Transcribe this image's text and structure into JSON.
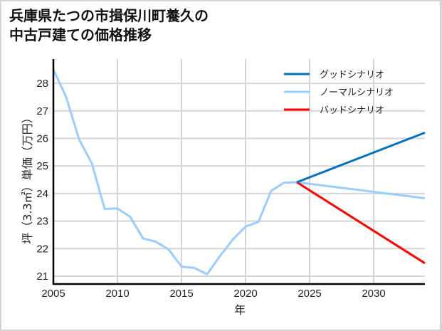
{
  "title": {
    "line1": "兵庫県たつの市揖保川町養久の",
    "line2": "中古戸建ての価格推移"
  },
  "colors": {
    "good": "#0070c0",
    "normal": "#99ccff",
    "bad": "#ff0000",
    "grid": "#d4d4d4",
    "axis": "#000000"
  },
  "chart_data": {
    "type": "line",
    "title": "兵庫県たつの市揖保川町養久の中古戸建ての価格推移",
    "xlabel": "年",
    "ylabel": "坪（3.3㎡）単価（万円）",
    "xlim": [
      2005,
      2034
    ],
    "ylim": [
      20.7,
      28.9
    ],
    "xticks": [
      2005,
      2010,
      2015,
      2020,
      2025,
      2030
    ],
    "yticks": [
      21,
      22,
      23,
      24,
      25,
      26,
      27,
      28
    ],
    "grid": true,
    "legend_position": "upper right",
    "historical": {
      "name": "ノーマルシナリオ",
      "x": [
        2005,
        2006,
        2007,
        2008,
        2009,
        2010,
        2011,
        2012,
        2013,
        2014,
        2015,
        2016,
        2017,
        2018,
        2019,
        2020,
        2021,
        2022,
        2023,
        2024
      ],
      "values": [
        28.5,
        27.5,
        25.97,
        25.1,
        23.44,
        23.46,
        23.15,
        22.37,
        22.25,
        21.97,
        21.35,
        21.3,
        21.07,
        21.73,
        22.33,
        22.8,
        22.97,
        24.1,
        24.39,
        24.41
      ]
    },
    "series": [
      {
        "name": "グッドシナリオ",
        "color": "#0070c0",
        "x": [
          2024,
          2034
        ],
        "values": [
          24.41,
          26.21
        ]
      },
      {
        "name": "ノーマルシナリオ",
        "color": "#99ccff",
        "x": [
          2024,
          2034
        ],
        "values": [
          24.41,
          23.83
        ]
      },
      {
        "name": "バッドシナリオ",
        "color": "#ff0000",
        "x": [
          2024,
          2034
        ],
        "values": [
          24.41,
          21.47
        ]
      }
    ]
  },
  "legend": [
    {
      "label": "グッドシナリオ",
      "color": "#0070c0"
    },
    {
      "label": "ノーマルシナリオ",
      "color": "#99ccff"
    },
    {
      "label": "バッドシナリオ",
      "color": "#ff0000"
    }
  ]
}
